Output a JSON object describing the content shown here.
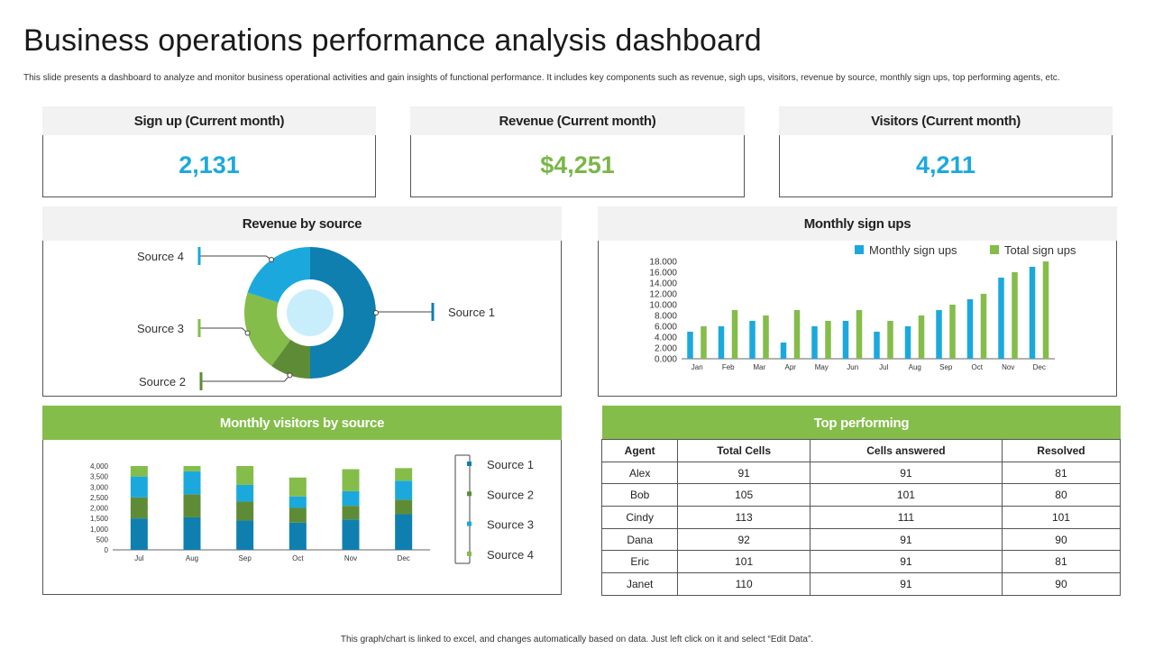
{
  "page": {
    "title": "Business operations performance analysis dashboard",
    "subtitle": "This slide presents a dashboard to analyze and monitor business operational activities and gain insights of functional performance. It includes key components such as revenue, sigh ups, visitors, revenue by source, monthly sign ups, top performing agents, etc.",
    "footer": "This graph/chart is linked to excel, and changes automatically based on data. Just left click on it and select “Edit Data”."
  },
  "kpis": [
    {
      "label": "Sign up (Current month)",
      "value": "2,131",
      "color": "#1ba9dd"
    },
    {
      "label": "Revenue (Current month)",
      "value": "$4,251",
      "color": "#7ab648"
    },
    {
      "label": "Visitors (Current month)",
      "value": "4,211",
      "color": "#1ba9dd"
    }
  ],
  "panels": {
    "revenue_by_source": "Revenue by source",
    "monthly_sign_ups": "Monthly sign ups",
    "monthly_visitors": "Monthly visitors by source",
    "top_performing": "Top performing"
  },
  "colors": {
    "dark_blue": "#0f7fb0",
    "light_blue": "#1ba9dd",
    "green": "#84bd4a",
    "dark_green": "#5e8c36"
  },
  "chart_data": [
    {
      "type": "pie",
      "title": "Revenue by source",
      "categories": [
        "Source 1",
        "Source 2",
        "Source 3",
        "Source 4"
      ],
      "values": [
        50,
        10,
        20,
        20
      ],
      "colors": [
        "#0f7fb0",
        "#5e8c36",
        "#84bd4a",
        "#1ba9dd"
      ]
    },
    {
      "type": "bar",
      "title": "Monthly sign ups",
      "categories": [
        "Jan",
        "Feb",
        "Mar",
        "Apr",
        "May",
        "Jun",
        "Jul",
        "Aug",
        "Sep",
        "Oct",
        "Nov",
        "Dec"
      ],
      "series": [
        {
          "name": "Monthly sign ups",
          "color": "#1ba9dd",
          "values": [
            5000,
            6000,
            7000,
            3000,
            6000,
            7000,
            5000,
            6000,
            9000,
            11000,
            15000,
            17000
          ]
        },
        {
          "name": "Total sign ups",
          "color": "#84bd4a",
          "values": [
            6000,
            9000,
            8000,
            9000,
            7000,
            9000,
            7000,
            8000,
            10000,
            12000,
            16000,
            18000
          ]
        }
      ],
      "ylim": [
        0,
        18000
      ],
      "yticks": [
        "0.000",
        "2.000",
        "4.000",
        "6.000",
        "8.000",
        "10.000",
        "12.000",
        "14.000",
        "16.000",
        "18.000"
      ],
      "legend": "top-right"
    },
    {
      "type": "bar",
      "stacked": true,
      "title": "Monthly visitors by source",
      "categories": [
        "Jul",
        "Aug",
        "Sep",
        "Oct",
        "Nov",
        "Dec"
      ],
      "series": [
        {
          "name": "Source 1",
          "color": "#0f7fb0",
          "values": [
            1500,
            1550,
            1400,
            1300,
            1450,
            1700
          ]
        },
        {
          "name": "Source 2",
          "color": "#5e8c36",
          "values": [
            1000,
            1100,
            900,
            700,
            650,
            700
          ]
        },
        {
          "name": "Source 3",
          "color": "#1ba9dd",
          "values": [
            1000,
            1100,
            800,
            550,
            700,
            900
          ]
        },
        {
          "name": "Source 4",
          "color": "#84bd4a",
          "values": [
            500,
            250,
            900,
            900,
            1050,
            600
          ]
        }
      ],
      "ylim": [
        0,
        4000
      ],
      "yticks": [
        "0",
        "500",
        "1,000",
        "1,500",
        "2,000",
        "2,500",
        "3,000",
        "3,500",
        "4,000"
      ],
      "legend": "right"
    },
    {
      "type": "table",
      "title": "Top performing",
      "columns": [
        "Agent",
        "Total Cells",
        "Cells answered",
        "Resolved"
      ],
      "rows": [
        [
          "Alex",
          "91",
          "91",
          "81"
        ],
        [
          "Bob",
          "105",
          "101",
          "80"
        ],
        [
          "Cindy",
          "113",
          "111",
          "101"
        ],
        [
          "Dana",
          "92",
          "91",
          "90"
        ],
        [
          "Eric",
          "101",
          "91",
          "81"
        ],
        [
          "Janet",
          "110",
          "91",
          "90"
        ]
      ]
    }
  ]
}
